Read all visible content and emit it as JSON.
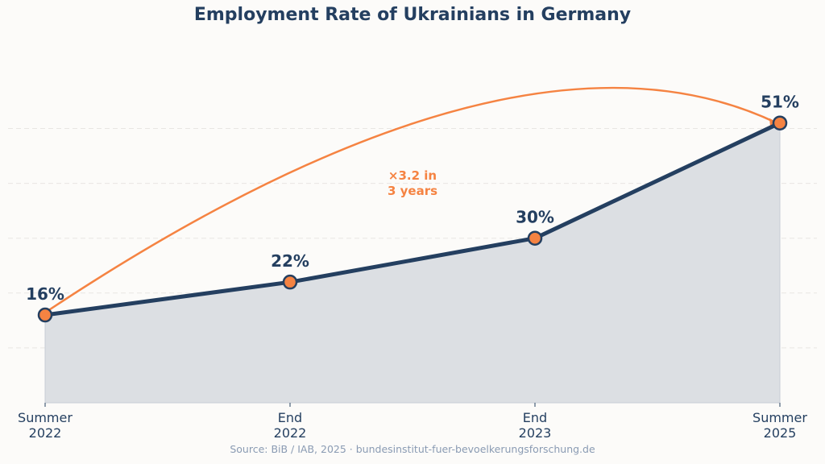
{
  "chart_data": {
    "type": "area",
    "title": "Employment Rate of Ukrainians in Germany",
    "categories": [
      [
        "Summer",
        "2022"
      ],
      [
        "End",
        "2022"
      ],
      [
        "End",
        "2023"
      ],
      [
        "Summer",
        "2025"
      ]
    ],
    "series": [
      {
        "values": [
          16,
          22,
          30,
          51
        ]
      }
    ],
    "data_labels": [
      "16%",
      "22%",
      "30%",
      "51%"
    ],
    "ylim": [
      0,
      73
    ],
    "yticks_gridlines": [
      10,
      20,
      30,
      40,
      50
    ],
    "y_tick_labels_shown": false,
    "grid": true,
    "annotation": {
      "text": [
        "×3.2 in",
        "3 years"
      ],
      "arrow_from": "Summer 2022",
      "arrow_to": "Summer 2025"
    },
    "source": "Source: BiB / IAB, 2025 · bundesinstitut-fuer-bevoelkerungsforschung.de",
    "colors": {
      "line": "#243f60",
      "marker": "#f58342",
      "fill": "#dcdfe3",
      "annotation": "#f58342",
      "title": "#243f60",
      "source": "#8a9bb3"
    }
  }
}
